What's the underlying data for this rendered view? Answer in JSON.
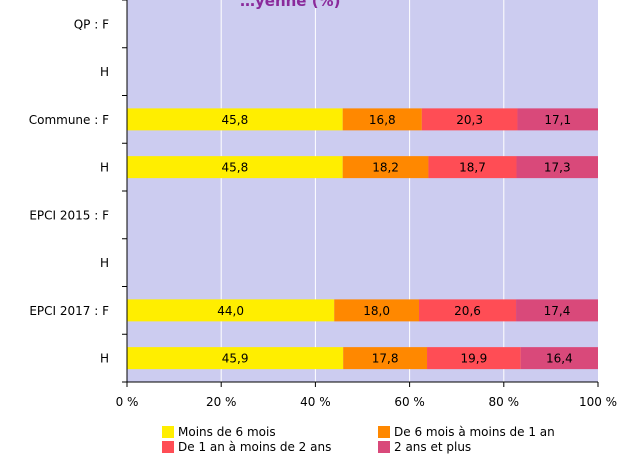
{
  "chart_data": {
    "type": "bar",
    "orientation": "horizontal",
    "stacked": true,
    "title_fragment": "…yenne (%)",
    "categories": [
      "QP : F",
      "H",
      "Commune : F",
      "H",
      "EPCI 2015 : F",
      "H",
      "EPCI 2017 : F",
      "H"
    ],
    "series": [
      {
        "name": "Moins de 6 mois",
        "color": "#ffee00",
        "values": [
          null,
          null,
          45.8,
          45.8,
          null,
          null,
          44.0,
          45.9
        ],
        "labels": [
          "",
          "",
          "45,8",
          "45,8",
          "",
          "",
          "44,0",
          "45,9"
        ]
      },
      {
        "name": "De 6 mois à moins de 1 an",
        "color": "#ff8800",
        "values": [
          null,
          null,
          16.8,
          18.2,
          null,
          null,
          18.0,
          17.8
        ],
        "labels": [
          "",
          "",
          "16,8",
          "18,2",
          "",
          "",
          "18,0",
          "17,8"
        ]
      },
      {
        "name": "De 1 an à moins de 2 ans",
        "color": "#ff4d55",
        "values": [
          null,
          null,
          20.3,
          18.7,
          null,
          null,
          20.6,
          19.9
        ],
        "labels": [
          "",
          "",
          "20,3",
          "18,7",
          "",
          "",
          "20,6",
          "19,9"
        ]
      },
      {
        "name": "2 ans et plus",
        "color": "#d9497a",
        "values": [
          null,
          null,
          17.1,
          17.3,
          null,
          null,
          17.4,
          16.4
        ],
        "labels": [
          "",
          "",
          "17,1",
          "17,3",
          "",
          "",
          "17,4",
          "16,4"
        ]
      }
    ],
    "xlim": [
      0,
      100
    ],
    "xticks": [
      "0 %",
      "20 %",
      "40 %",
      "60 %",
      "80 %",
      "100 %"
    ],
    "plot_background": "#ccccf0",
    "grid": true,
    "legend_position": "bottom"
  }
}
